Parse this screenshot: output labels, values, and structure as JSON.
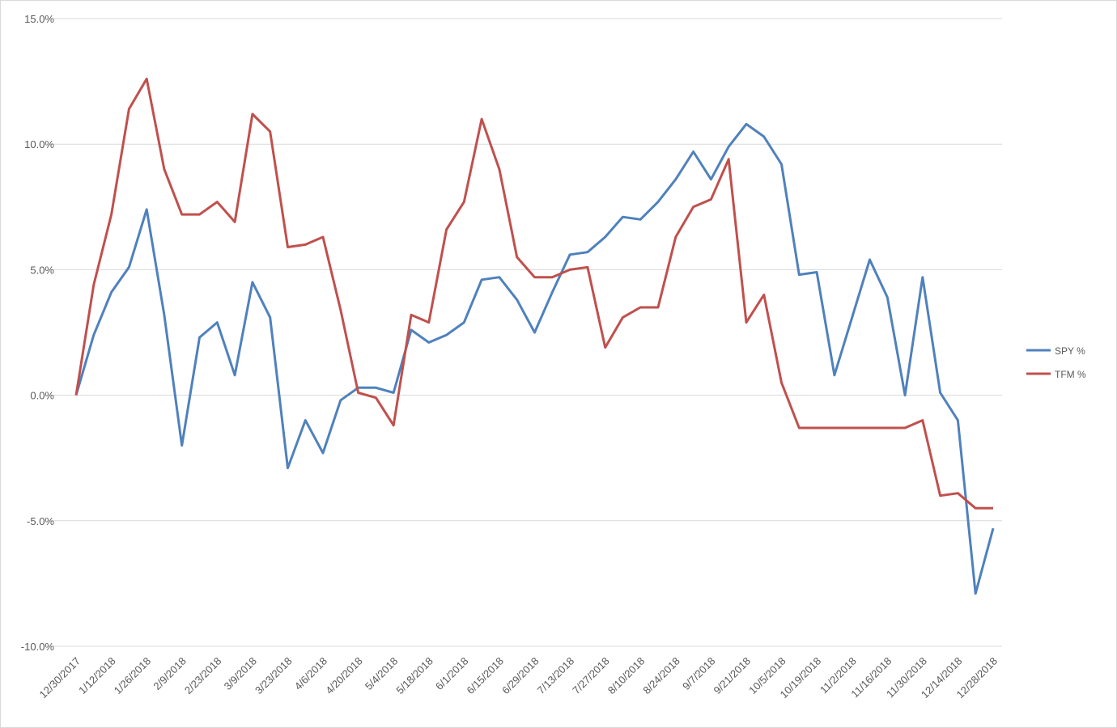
{
  "chart_data": {
    "type": "line",
    "categories": [
      "12/30/2017",
      null,
      "1/12/2018",
      null,
      "1/26/2018",
      null,
      "2/9/2018",
      null,
      "2/23/2018",
      null,
      "3/9/2018",
      null,
      "3/23/2018",
      null,
      "4/6/2018",
      null,
      "4/20/2018",
      null,
      "5/4/2018",
      null,
      "5/18/2018",
      null,
      "6/1/2018",
      null,
      "6/15/2018",
      null,
      "6/29/2018",
      null,
      "7/13/2018",
      null,
      "7/27/2018",
      null,
      "8/10/2018",
      null,
      "8/24/2018",
      null,
      "9/7/2018",
      null,
      "9/21/2018",
      null,
      "10/5/2018",
      null,
      "10/19/2018",
      null,
      "11/2/2018",
      null,
      "11/16/2018",
      null,
      "11/30/2018",
      null,
      "12/14/2018",
      null,
      "12/28/2018"
    ],
    "series": [
      {
        "name": "SPY %",
        "color": "#4f81bd",
        "values": [
          0,
          2.4,
          4.1,
          5.1,
          7.4,
          3.2,
          -2.0,
          2.3,
          2.9,
          0.8,
          4.5,
          3.1,
          -2.9,
          -1.0,
          -2.3,
          -0.2,
          0.3,
          0.3,
          0.1,
          2.6,
          2.1,
          2.4,
          2.9,
          4.6,
          4.7,
          3.8,
          2.5,
          4.1,
          5.6,
          5.7,
          6.3,
          7.1,
          7.0,
          7.7,
          8.6,
          9.7,
          8.6,
          9.9,
          10.8,
          10.3,
          9.2,
          4.8,
          4.9,
          0.8,
          3.1,
          5.4,
          3.9,
          0.0,
          4.7,
          0.1,
          -1.0,
          -7.9,
          -5.3
        ]
      },
      {
        "name": "TFM %",
        "color": "#c0504d",
        "values": [
          0,
          4.4,
          7.2,
          11.4,
          12.6,
          9.0,
          7.2,
          7.2,
          7.7,
          6.9,
          11.2,
          10.5,
          5.9,
          6.0,
          6.3,
          3.4,
          0.1,
          -0.1,
          -1.2,
          3.2,
          2.9,
          6.6,
          7.7,
          11.0,
          9.0,
          5.5,
          4.7,
          4.7,
          5.0,
          5.1,
          1.9,
          3.1,
          3.5,
          3.5,
          6.3,
          7.5,
          7.8,
          9.4,
          2.9,
          4.0,
          0.5,
          -1.3,
          -1.3,
          -1.3,
          -1.3,
          -1.3,
          -1.3,
          -1.3,
          -1.0,
          -4.0,
          -3.9,
          -4.5,
          -4.5
        ]
      }
    ],
    "ylim": [
      -10,
      15
    ],
    "yticks": [
      {
        "value": -10,
        "label": "-10.0%"
      },
      {
        "value": -5,
        "label": "-5.0%"
      },
      {
        "value": 0,
        "label": "0.0%"
      },
      {
        "value": 5,
        "label": "5.0%"
      },
      {
        "value": 10,
        "label": "10.0%"
      },
      {
        "value": 15,
        "label": "15.0%"
      }
    ],
    "grid": true,
    "legend": "right"
  }
}
